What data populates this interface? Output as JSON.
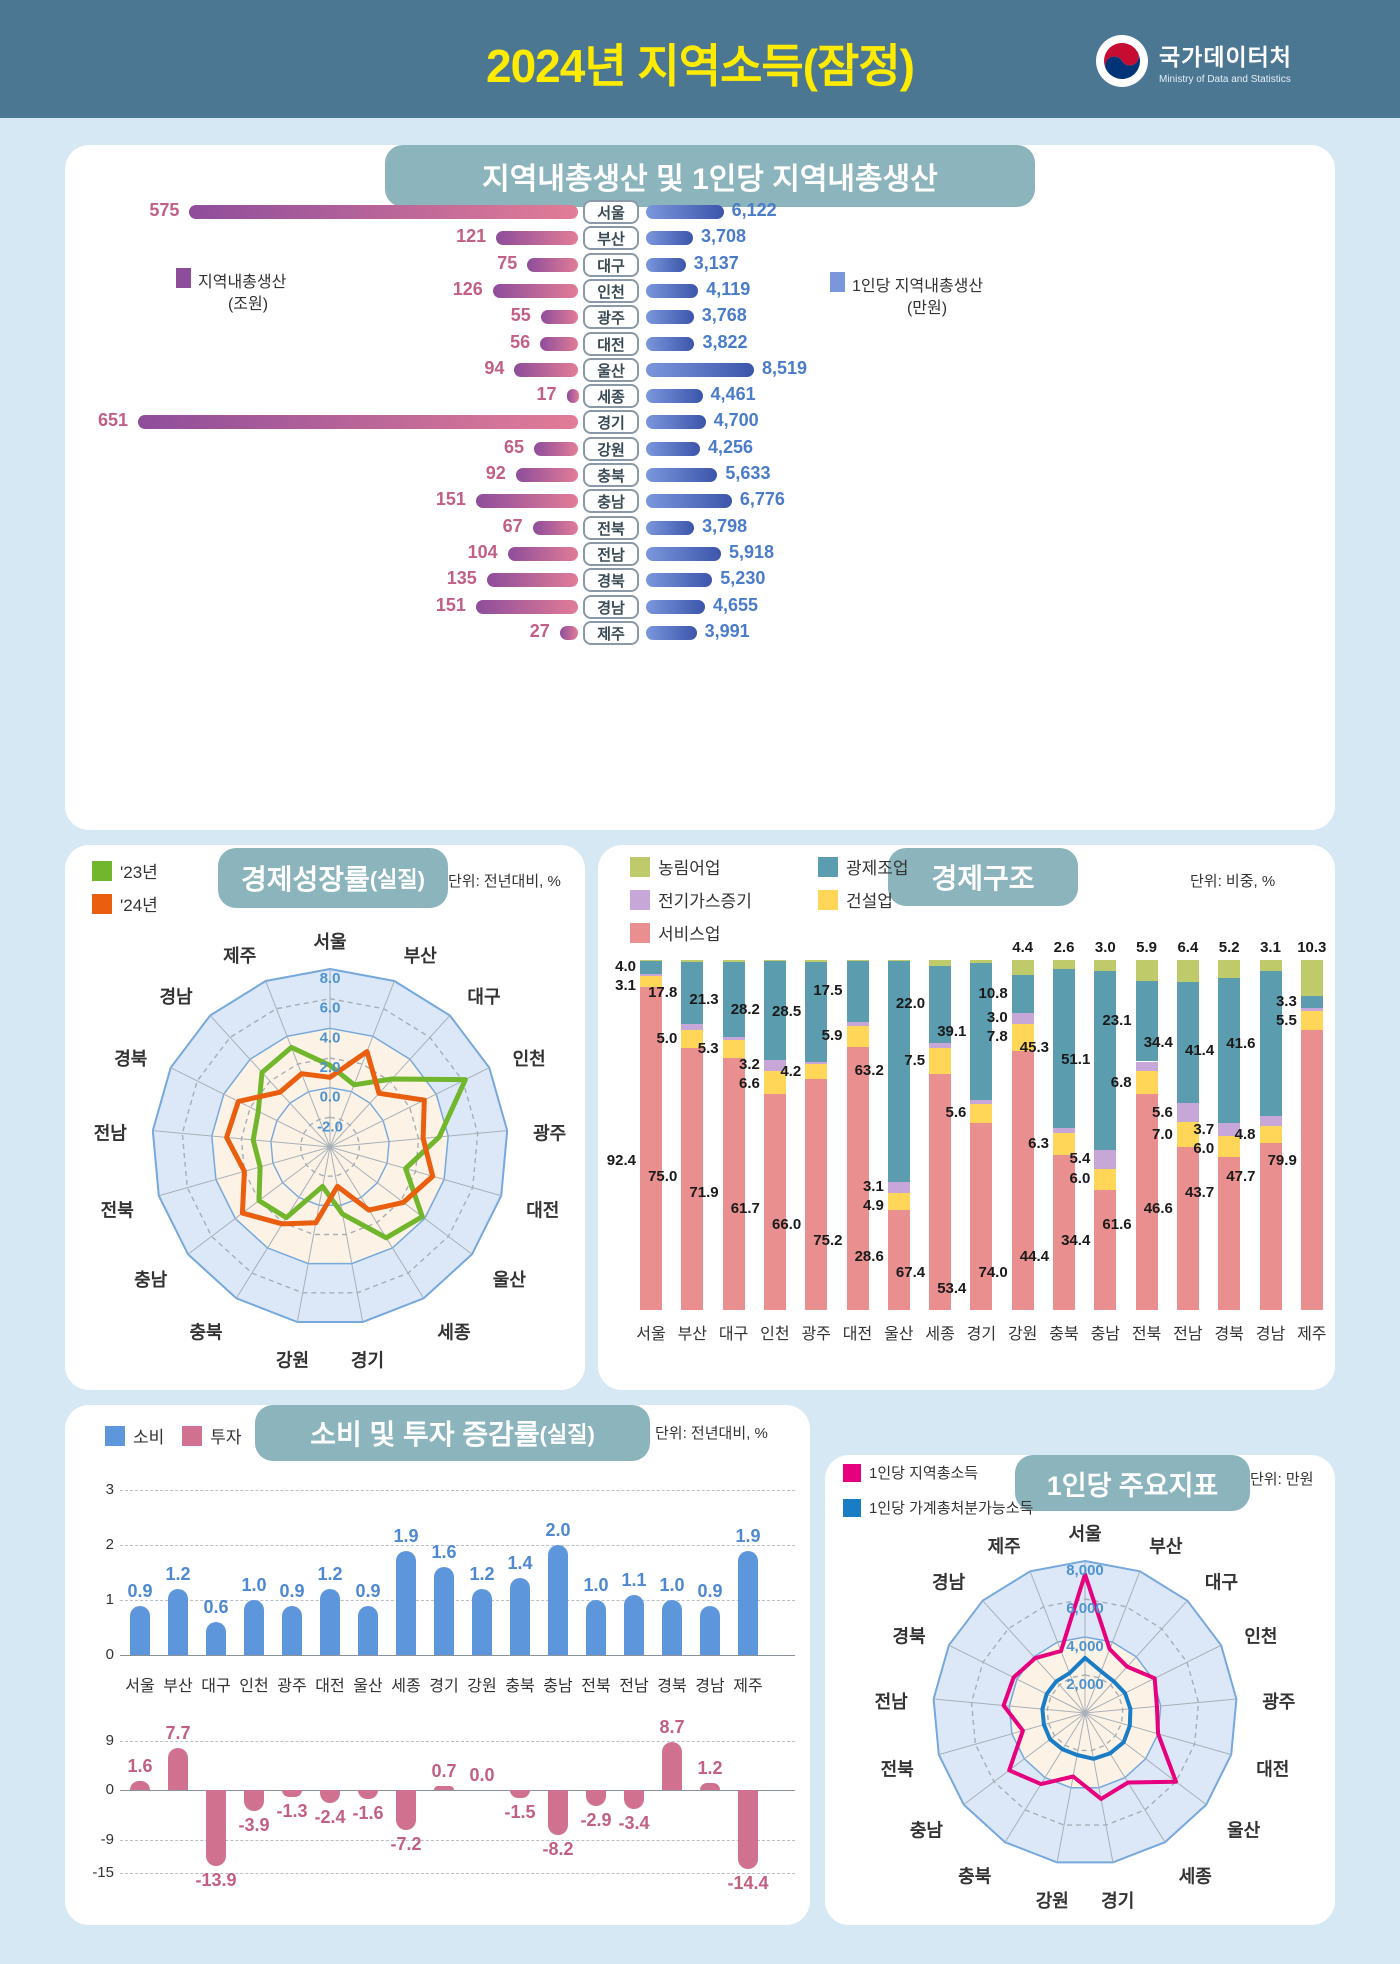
{
  "header": {
    "title": "2024년 지역소득(잠정)",
    "agency": "국가데이터처",
    "agency_en": "Ministry of Data and Statistics"
  },
  "regions": [
    "서울",
    "부산",
    "대구",
    "인천",
    "광주",
    "대전",
    "울산",
    "세종",
    "경기",
    "강원",
    "충북",
    "충남",
    "전북",
    "전남",
    "경북",
    "경남",
    "제주"
  ],
  "chart_data": [
    {
      "id": "grdp",
      "type": "bar",
      "title": "지역내총생산 및 1인당 지역내총생산",
      "left": {
        "legend": "지역내총생산",
        "unit": "(조원)",
        "color_from": "#8E4D9B",
        "color_to": "#E27C97",
        "max": 651,
        "values": [
          575,
          121,
          75,
          126,
          55,
          56,
          94,
          17,
          651,
          65,
          92,
          151,
          67,
          104,
          135,
          151,
          27
        ]
      },
      "right": {
        "legend": "1인당 지역내총생산",
        "unit": "(만원)",
        "color_from": "#7B97DC",
        "color_to": "#3C55AB",
        "max": 8519,
        "values": [
          6122,
          3708,
          3137,
          4119,
          3768,
          3822,
          8519,
          4461,
          4700,
          4256,
          5633,
          6776,
          3798,
          5918,
          5230,
          4655,
          3991
        ]
      }
    },
    {
      "id": "growth",
      "type": "radar",
      "title_main": "경제성장률",
      "title_sub": "(실질)",
      "unit": "단위: 전년대비, %",
      "axis_min": -4,
      "axis_max": 8,
      "ticks": [
        {
          "label": "8.0",
          "value": 8,
          "style": "solid"
        },
        {
          "label": "6.0",
          "value": 6,
          "style": "dashed"
        },
        {
          "label": "4.0",
          "value": 4,
          "style": "solid"
        },
        {
          "label": "2.0",
          "value": 2,
          "style": "dashed"
        },
        {
          "label": "0.0",
          "value": 0,
          "style": "solid"
        },
        {
          "label": "-2.0",
          "value": -2,
          "style": "dashed"
        }
      ],
      "band_outer": 8,
      "band_inner": 4,
      "series": [
        {
          "name": "'23년",
          "color": "#71B62C",
          "values": [
            1.5,
            0.5,
            2.2,
            6.2,
            3.4,
            1.3,
            3.8,
            3.2,
            0.6,
            -1.3,
            1.6,
            2.0,
            0.9,
            1.2,
            1.4,
            2.8,
            3.2
          ]
        },
        {
          "name": "'24년",
          "color": "#E95E0F",
          "values": [
            0.7,
            2.9,
            0.9,
            3.1,
            2.3,
            3.2,
            2.2,
            1.0,
            -1.3,
            1.2,
            2.1,
            3.4,
            2.0,
            3.0,
            2.9,
            1.0,
            1.3
          ]
        }
      ]
    },
    {
      "id": "structure",
      "type": "stacked-bar",
      "title": "경제구조",
      "unit": "단위: 비중, %",
      "legend": [
        {
          "key": "agri",
          "name": "농림어업",
          "color": "#BFCA6A"
        },
        {
          "key": "mining",
          "name": "광제조업",
          "color": "#5C9CAF"
        },
        {
          "key": "elec",
          "name": "전기가스증기",
          "color": "#C7A6D8"
        },
        {
          "key": "constr",
          "name": "건설업",
          "color": "#FFD657"
        },
        {
          "key": "serv",
          "name": "서비스업",
          "color": "#E98F8F"
        }
      ],
      "stack_order_bottom_up": [
        "serv",
        "constr",
        "elec",
        "mining",
        "agri"
      ],
      "rows": [
        {
          "region": "서울",
          "serv": 92.4,
          "constr": 3.1,
          "elec": 0.4,
          "mining": 4.0,
          "agri": 0.1,
          "labels": {
            "serv": "92.4",
            "constr": "3.1",
            "mining": "4.0"
          }
        },
        {
          "region": "부산",
          "serv": 75.0,
          "constr": 5.0,
          "elec": 1.6,
          "mining": 17.8,
          "agri": 0.6,
          "labels": {
            "serv": "75.0",
            "constr": "5.0",
            "mining": "17.8"
          }
        },
        {
          "region": "대구",
          "serv": 71.9,
          "constr": 5.3,
          "elec": 0.8,
          "mining": 21.3,
          "agri": 0.7,
          "labels": {
            "serv": "71.9",
            "constr": "5.3",
            "mining": "21.3"
          }
        },
        {
          "region": "인천",
          "serv": 61.7,
          "constr": 6.6,
          "elec": 3.2,
          "mining": 28.2,
          "agri": 0.3,
          "labels": {
            "serv": "61.7",
            "constr": "6.6",
            "elec": "3.2",
            "mining": "28.2"
          }
        },
        {
          "region": "광주",
          "serv": 66.0,
          "constr": 4.2,
          "elec": 0.8,
          "mining": 28.5,
          "agri": 0.5,
          "labels": {
            "serv": "66.0",
            "constr": "4.2",
            "mining": "28.5"
          }
        },
        {
          "region": "대전",
          "serv": 75.2,
          "constr": 5.9,
          "elec": 1.2,
          "mining": 17.5,
          "agri": 0.2,
          "labels": {
            "serv": "75.2",
            "constr": "5.9",
            "mining": "17.5"
          }
        },
        {
          "region": "울산",
          "serv": 28.6,
          "constr": 4.9,
          "elec": 3.1,
          "mining": 63.2,
          "agri": 0.2,
          "labels": {
            "serv": "28.6",
            "constr": "4.9",
            "elec": "3.1",
            "mining": "63.2"
          }
        },
        {
          "region": "세종",
          "serv": 67.4,
          "constr": 7.5,
          "elec": 1.5,
          "mining": 22.0,
          "agri": 1.6,
          "labels": {
            "serv": "67.4",
            "constr": "7.5",
            "mining": "22.0"
          }
        },
        {
          "region": "경기",
          "serv": 53.4,
          "constr": 5.6,
          "elec": 1.0,
          "mining": 39.1,
          "agri": 0.9,
          "labels": {
            "serv": "53.4",
            "constr": "5.6",
            "mining": "39.1"
          }
        },
        {
          "region": "강원",
          "serv": 74.0,
          "constr": 7.8,
          "elec": 3.0,
          "mining": 10.8,
          "agri": 4.4,
          "labels": {
            "serv": "74.0",
            "constr": "7.8",
            "elec": "3.0",
            "mining": "10.8",
            "agri": "4.4"
          }
        },
        {
          "region": "충북",
          "serv": 44.4,
          "constr": 6.3,
          "elec": 1.4,
          "mining": 45.3,
          "agri": 2.6,
          "labels": {
            "serv": "44.4",
            "constr": "6.3",
            "mining": "45.3",
            "agri": "2.6"
          }
        },
        {
          "region": "충남",
          "serv": 34.4,
          "constr": 6.0,
          "elec": 5.4,
          "mining": 51.1,
          "agri": 3.0,
          "labels": {
            "serv": "34.4",
            "constr": "6.0",
            "elec": "5.4",
            "mining": "51.1",
            "agri": "3.0"
          }
        },
        {
          "region": "전북",
          "serv": 61.6,
          "constr": 6.8,
          "elec": 2.6,
          "mining": 23.1,
          "agri": 5.9,
          "labels": {
            "serv": "61.6",
            "constr": "6.8",
            "mining": "23.1",
            "agri": "5.9"
          }
        },
        {
          "region": "전남",
          "serv": 46.6,
          "constr": 7.0,
          "elec": 5.6,
          "mining": 34.4,
          "agri": 6.4,
          "labels": {
            "serv": "46.6",
            "constr": "7.0",
            "elec": "5.6",
            "mining": "34.4",
            "agri": "6.4"
          }
        },
        {
          "region": "경북",
          "serv": 43.7,
          "constr": 6.0,
          "elec": 3.7,
          "mining": 41.4,
          "agri": 5.2,
          "labels": {
            "serv": "43.7",
            "constr": "6.0",
            "elec": "3.7",
            "mining": "41.4",
            "agri": "5.2"
          }
        },
        {
          "region": "경남",
          "serv": 47.7,
          "constr": 4.8,
          "elec": 2.8,
          "mining": 41.6,
          "agri": 3.1,
          "labels": {
            "serv": "47.7",
            "constr": "4.8",
            "mining": "41.6",
            "agri": "3.1"
          }
        },
        {
          "region": "제주",
          "serv": 79.9,
          "constr": 5.5,
          "elec": 1.0,
          "mining": 3.3,
          "agri": 10.3,
          "labels": {
            "serv": "79.9",
            "constr": "5.5",
            "mining": "3.3",
            "agri": "10.3"
          }
        }
      ]
    },
    {
      "id": "consumption_investment",
      "type": "bar",
      "title_main": "소비 및 투자 증감률",
      "title_sub": "(실질)",
      "unit": "단위: 전년대비, %",
      "legend": [
        {
          "name": "소비",
          "color": "#5D96DB"
        },
        {
          "name": "투자",
          "color": "#D0728F"
        }
      ],
      "consumption": {
        "yticks": [
          3,
          2,
          1,
          0
        ],
        "values": [
          0.9,
          1.2,
          0.6,
          1.0,
          0.9,
          1.2,
          0.9,
          1.9,
          1.6,
          1.2,
          1.4,
          2.0,
          1.0,
          1.1,
          1.0,
          0.9,
          1.9
        ]
      },
      "investment": {
        "yticks": [
          9,
          0,
          -9,
          -15
        ],
        "values": [
          1.6,
          7.7,
          -13.9,
          -3.9,
          -1.3,
          -2.4,
          -1.6,
          -7.2,
          0.7,
          0.0,
          -1.5,
          -8.2,
          -2.9,
          -3.4,
          8.7,
          1.2,
          -14.4
        ]
      }
    },
    {
      "id": "per_capita",
      "type": "radar",
      "title": "1인당 주요지표",
      "unit": "단위: 만원",
      "axis_min": 0,
      "axis_max": 8000,
      "ticks": [
        {
          "label": "8,000",
          "value": 8000,
          "style": "solid"
        },
        {
          "label": "6,000",
          "value": 6000,
          "style": "dashed"
        },
        {
          "label": "4,000",
          "value": 4000,
          "style": "solid"
        },
        {
          "label": "2,000",
          "value": 2000,
          "style": "dashed"
        }
      ],
      "band_outer": 8000,
      "band_inner": 4000,
      "series": [
        {
          "name": "1인당 지역총소득",
          "color": "#E6007D",
          "values": [
            7300,
            3600,
            3300,
            4100,
            3800,
            4000,
            6000,
            4300,
            4600,
            3400,
            4400,
            5000,
            3400,
            4300,
            4200,
            3900,
            3500
          ]
        },
        {
          "name": "1인당 가계총처분가능소득",
          "color": "#1B7CC6",
          "values": [
            2900,
            2350,
            2250,
            2350,
            2400,
            2450,
            2550,
            2500,
            2450,
            2250,
            2250,
            2300,
            2250,
            2250,
            2250,
            2250,
            2250
          ]
        }
      ]
    }
  ]
}
